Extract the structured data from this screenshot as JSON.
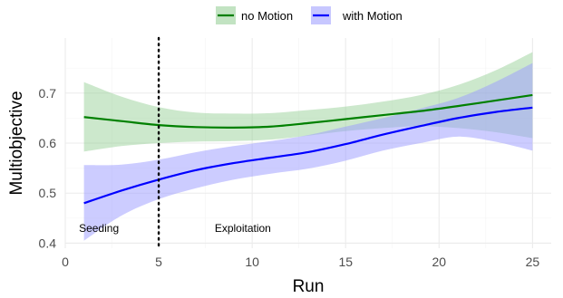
{
  "chart_data": {
    "type": "line",
    "xlabel": "Run",
    "ylabel": "Multiobjective",
    "xlim": [
      0,
      26
    ],
    "ylim": [
      0.39,
      0.81
    ],
    "xticks": [
      0,
      5,
      10,
      15,
      20,
      25
    ],
    "yticks": [
      0.4,
      0.5,
      0.6,
      0.7
    ],
    "grid": true,
    "legend_position": "top",
    "vline": {
      "x": 5,
      "style": "dotted"
    },
    "annotations": [
      {
        "text": "Seeding",
        "x": 1.8,
        "y": 0.43
      },
      {
        "text": "Exploitation",
        "x": 9.5,
        "y": 0.43
      }
    ],
    "series": [
      {
        "name": "no Motion",
        "color": "#008000",
        "band_color": "#8fcc8f",
        "x": [
          1,
          3,
          5,
          7,
          9,
          11,
          13,
          15,
          17,
          19,
          21,
          23,
          25
        ],
        "y": [
          0.652,
          0.644,
          0.636,
          0.632,
          0.631,
          0.633,
          0.64,
          0.648,
          0.656,
          0.664,
          0.674,
          0.685,
          0.696
        ],
        "lower": [
          0.583,
          0.594,
          0.6,
          0.603,
          0.604,
          0.607,
          0.615,
          0.624,
          0.63,
          0.634,
          0.63,
          0.622,
          0.61
        ],
        "upper": [
          0.722,
          0.693,
          0.672,
          0.661,
          0.659,
          0.66,
          0.666,
          0.673,
          0.683,
          0.696,
          0.716,
          0.745,
          0.782
        ]
      },
      {
        "name": "with Motion",
        "color": "#0000ff",
        "band_color": "#9999ff",
        "x": [
          1,
          3,
          5,
          7,
          9,
          11,
          13,
          15,
          17,
          19,
          21,
          23,
          25
        ],
        "y": [
          0.48,
          0.505,
          0.527,
          0.546,
          0.56,
          0.571,
          0.582,
          0.598,
          0.617,
          0.634,
          0.65,
          0.662,
          0.671
        ],
        "lower": [
          0.405,
          0.455,
          0.488,
          0.51,
          0.527,
          0.539,
          0.549,
          0.565,
          0.585,
          0.6,
          0.613,
          0.603,
          0.585
        ],
        "upper": [
          0.556,
          0.557,
          0.567,
          0.582,
          0.594,
          0.604,
          0.616,
          0.633,
          0.65,
          0.669,
          0.69,
          0.722,
          0.76
        ]
      }
    ]
  }
}
